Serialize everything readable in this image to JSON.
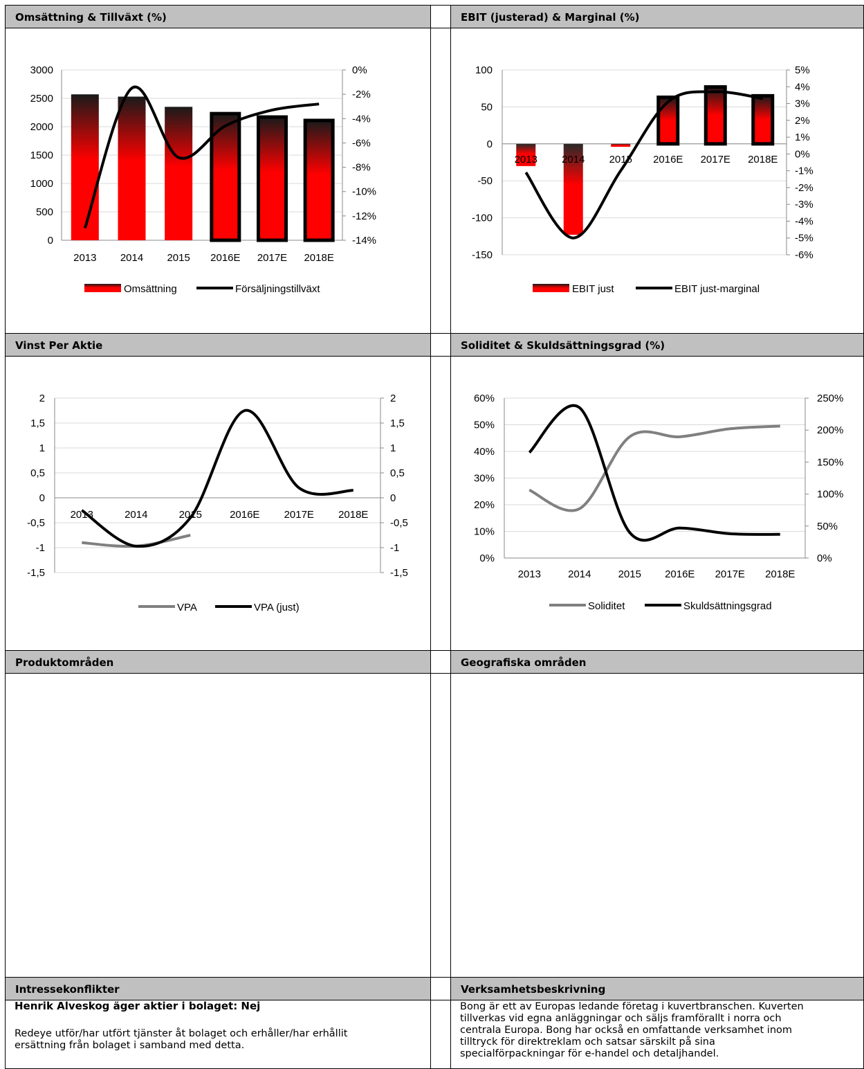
{
  "sections": {
    "product_areas": "Produktområden",
    "geo_areas": "Geografiska områden",
    "conflicts": "Intressekonflikter",
    "business": "Verksamhetsbeskrivning"
  },
  "conflicts_text": {
    "owner_line": "Henrik Alveskog äger aktier i bolaget: Nej",
    "services_line1": "Redeye utför/har utfört tjänster åt bolaget och erhåller/har erhållit",
    "services_line2": "ersättning från bolaget i samband med detta."
  },
  "business_text": {
    "line1": "Bong är ett av Europas ledande företag i kuvertbranschen. Kuverten",
    "line2": "tillverkas vid egna anläggningar och säljs framförallt i norra och",
    "line3": "centrala Europa. Bong har också en omfattande verksamhet inom",
    "line4": "tilltryck för direktreklam och satsar särskilt på sina",
    "line5": "specialförpackningar för e-handel och detaljhandel."
  },
  "colors": {
    "red": "#ff0000",
    "dark": "#1a1a1a",
    "grey": "#808080",
    "header": "#c0c0c0"
  },
  "chart_data": [
    {
      "type": "bar",
      "title": "Omsättning & Tillväxt (%)",
      "categories": [
        "2013",
        "2014",
        "2015",
        "2016E",
        "2017E",
        "2018E"
      ],
      "ylim": [
        0,
        3000
      ],
      "yticks": [
        "3000",
        "2500",
        "2000",
        "1500",
        "1000",
        "500",
        "0"
      ],
      "y2lim": [
        -14,
        0
      ],
      "y2ticks": [
        "0%",
        "-2%",
        "-4%",
        "-6%",
        "-8%",
        "-10%",
        "-12%",
        "-14%"
      ],
      "series": [
        {
          "name": "Omsättning",
          "kind": "bar",
          "axis": "left",
          "values": [
            2570,
            2530,
            2350,
            2230,
            2170,
            2110
          ],
          "estimate": [
            false,
            false,
            false,
            true,
            true,
            true
          ]
        },
        {
          "name": "Försäljningstillväxt",
          "kind": "line",
          "axis": "right",
          "values": [
            -13.0,
            -1.5,
            -7.2,
            -4.6,
            -3.3,
            -2.8
          ]
        }
      ],
      "legend": "bottom"
    },
    {
      "type": "bar",
      "title": "EBIT (justerad) & Marginal (%)",
      "categories": [
        "2013",
        "2014",
        "2015",
        "2016E",
        "2017E",
        "2018E"
      ],
      "ylim": [
        -150,
        100
      ],
      "yticks": [
        "100",
        "50",
        "0",
        "-50",
        "-100",
        "-150"
      ],
      "y2lim": [
        -6,
        5
      ],
      "y2ticks": [
        "5%",
        "4%",
        "3%",
        "2%",
        "1%",
        "0%",
        "-1%",
        "-2%",
        "-3%",
        "-4%",
        "-5%",
        "-6%"
      ],
      "series": [
        {
          "name": "EBIT just",
          "kind": "bar",
          "axis": "left",
          "values": [
            -30,
            -123,
            -4,
            63,
            77,
            65
          ],
          "estimate": [
            false,
            false,
            false,
            true,
            true,
            true
          ]
        },
        {
          "name": "EBIT just-marginal",
          "kind": "line",
          "axis": "right",
          "values": [
            -1.1,
            -5.0,
            -1.0,
            3.1,
            3.7,
            3.3
          ]
        }
      ],
      "legend": "bottom"
    },
    {
      "type": "line",
      "title": "Vinst Per Aktie",
      "categories": [
        "2013",
        "2014",
        "2015",
        "2016E",
        "2017E",
        "2018E"
      ],
      "ylim": [
        -1.5,
        2
      ],
      "yticks": [
        "2",
        "1,5",
        "1",
        "0,5",
        "0",
        "-0,5",
        "-1",
        "-1,5"
      ],
      "y2ticks": [
        "2",
        "1,5",
        "1",
        "0,5",
        "0",
        "-0,5",
        "-1",
        "-1,5"
      ],
      "series": [
        {
          "name": "VPA",
          "values": [
            -0.9,
            -0.97,
            -0.75,
            null,
            null,
            null
          ]
        },
        {
          "name": "VPA (just)",
          "values": [
            -0.25,
            -0.97,
            -0.4,
            1.75,
            0.2,
            0.15
          ]
        }
      ],
      "legend": "bottom"
    },
    {
      "type": "line",
      "title": "Soliditet & Skuldsättningsgrad (%)",
      "categories": [
        "2013",
        "2014",
        "2015",
        "2016E",
        "2017E",
        "2018E"
      ],
      "ylim": [
        0,
        60
      ],
      "yticks": [
        "60%",
        "50%",
        "40%",
        "30%",
        "20%",
        "10%",
        "0%"
      ],
      "y2lim": [
        0,
        250
      ],
      "y2ticks": [
        "250%",
        "200%",
        "150%",
        "100%",
        "50%",
        "0%"
      ],
      "series": [
        {
          "name": "Soliditet",
          "axis": "left",
          "values": [
            25.5,
            18.5,
            45.5,
            45.5,
            48.5,
            49.5
          ]
        },
        {
          "name": "Skuldsättningsgrad",
          "axis": "right",
          "values": [
            165,
            235,
            40,
            47,
            38,
            37
          ]
        }
      ],
      "legend": "bottom"
    }
  ]
}
